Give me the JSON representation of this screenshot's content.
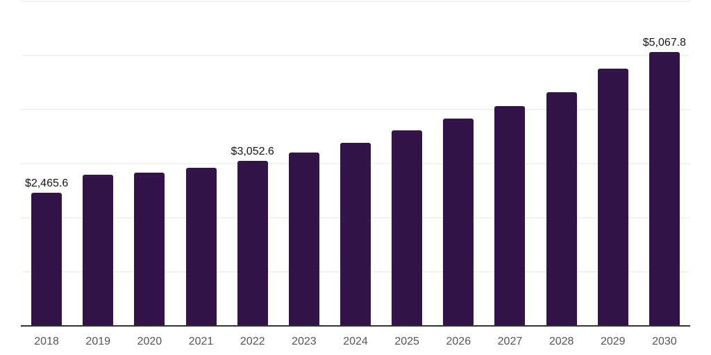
{
  "chart_data": {
    "type": "bar",
    "title": "",
    "xlabel": "",
    "ylabel": "",
    "categories": [
      "2018",
      "2019",
      "2020",
      "2021",
      "2022",
      "2023",
      "2024",
      "2025",
      "2026",
      "2027",
      "2028",
      "2029",
      "2030"
    ],
    "values": [
      2465.6,
      2800,
      2835,
      2920,
      3052.6,
      3205,
      3390,
      3610,
      3830,
      4060,
      4320,
      4760,
      5067.8
    ],
    "value_labels": [
      {
        "category": "2018",
        "text": "$2,465.6"
      },
      {
        "category": "2022",
        "text": "$3,052.6"
      },
      {
        "category": "2030",
        "text": "$5,067.8"
      }
    ],
    "ylim": [
      0,
      6000
    ],
    "gridline_values": [
      1000,
      2000,
      3000,
      4000,
      5000,
      6000
    ],
    "grid": true,
    "legend": false,
    "colors": {
      "bar": "#331449",
      "gridline": "#f2f2f2",
      "axis": "#333333",
      "value_label": "#141414",
      "tick_label": "#555555",
      "background": "#ffffff"
    }
  }
}
